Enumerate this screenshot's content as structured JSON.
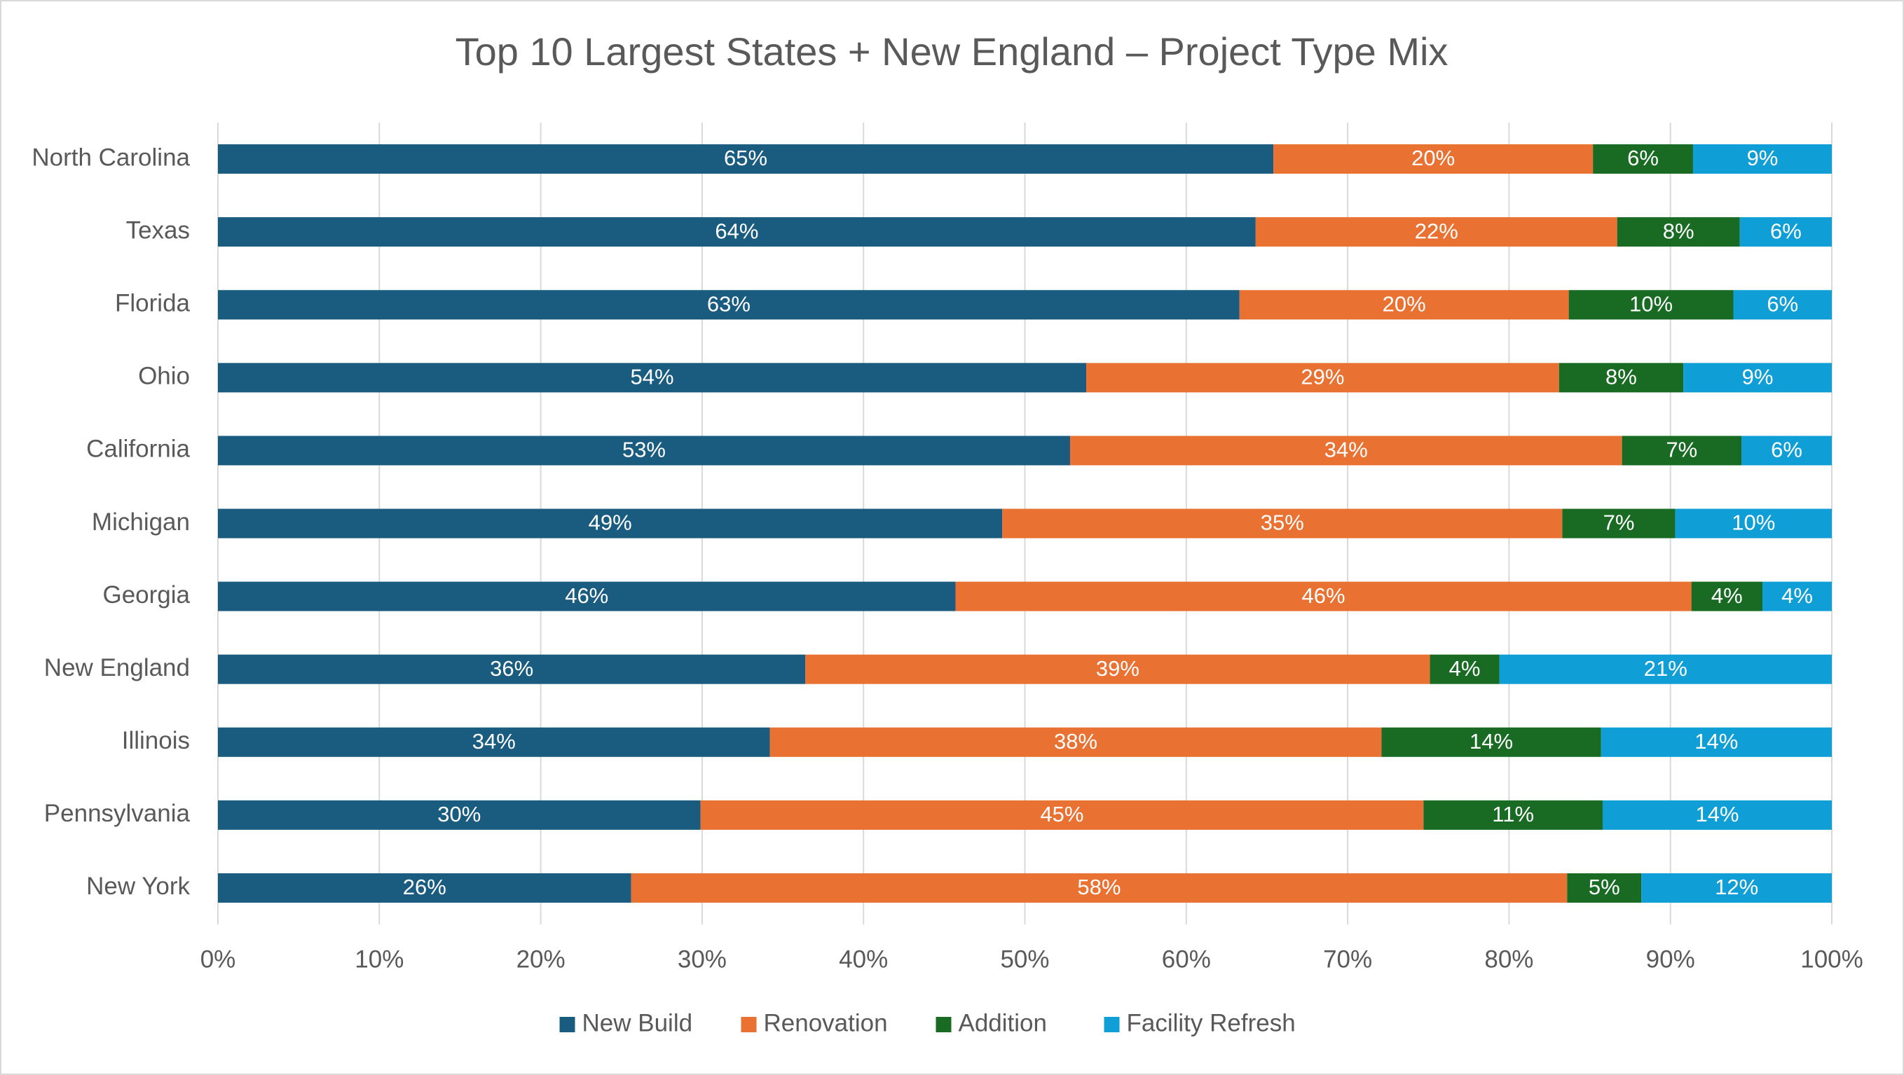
{
  "chart_data": {
    "type": "stacked_bar_horizontal",
    "title": "Top 10 Largest States + New England – Project Type Mix",
    "categories": [
      "North Carolina",
      "Texas",
      "Florida",
      "Ohio",
      "California",
      "Michigan",
      "Georgia",
      "New England",
      "Illinois",
      "Pennsylvania",
      "New York"
    ],
    "series": [
      {
        "name": "New Build",
        "color": "#1a5c80",
        "values": [
          65.4,
          64.3,
          63.3,
          53.8,
          52.8,
          48.6,
          45.7,
          36.4,
          34.2,
          29.9,
          25.6
        ],
        "value_labels": [
          "65%",
          "64%",
          "63%",
          "54%",
          "53%",
          "49%",
          "46%",
          "36%",
          "34%",
          "30%",
          "26%"
        ]
      },
      {
        "name": "Renovation",
        "color": "#e97132",
        "values": [
          19.8,
          22.4,
          20.4,
          29.3,
          34.2,
          34.7,
          45.6,
          38.7,
          37.9,
          44.8,
          58.0
        ],
        "value_labels": [
          "20%",
          "22%",
          "20%",
          "29%",
          "34%",
          "35%",
          "46%",
          "39%",
          "38%",
          "45%",
          "58%"
        ]
      },
      {
        "name": "Addition",
        "color": "#196b24",
        "values": [
          6.2,
          7.6,
          10.2,
          7.7,
          7.4,
          7.0,
          4.4,
          4.3,
          13.6,
          11.1,
          4.6
        ],
        "value_labels": [
          "6%",
          "8%",
          "10%",
          "8%",
          "7%",
          "7%",
          "4%",
          "4%",
          "14%",
          "11%",
          "5%"
        ]
      },
      {
        "name": "Facility Refresh",
        "color": "#0f9ed5",
        "values": [
          8.6,
          5.7,
          6.1,
          9.2,
          5.6,
          9.7,
          4.3,
          20.6,
          14.3,
          14.2,
          11.8
        ],
        "value_labels": [
          "9%",
          "6%",
          "6%",
          "9%",
          "6%",
          "10%",
          "4%",
          "21%",
          "14%",
          "14%",
          "12%"
        ]
      }
    ],
    "xlim": [
      0,
      100
    ],
    "xticks": [
      {
        "value": 0,
        "label": "0%"
      },
      {
        "value": 10,
        "label": "10%"
      },
      {
        "value": 20,
        "label": "20%"
      },
      {
        "value": 30,
        "label": "30%"
      },
      {
        "value": 40,
        "label": "40%"
      },
      {
        "value": 50,
        "label": "50%"
      },
      {
        "value": 60,
        "label": "60%"
      },
      {
        "value": 70,
        "label": "70%"
      },
      {
        "value": 80,
        "label": "80%"
      },
      {
        "value": 90,
        "label": "90%"
      },
      {
        "value": 100,
        "label": "100%"
      }
    ],
    "grid": true,
    "legend": "bottom"
  }
}
